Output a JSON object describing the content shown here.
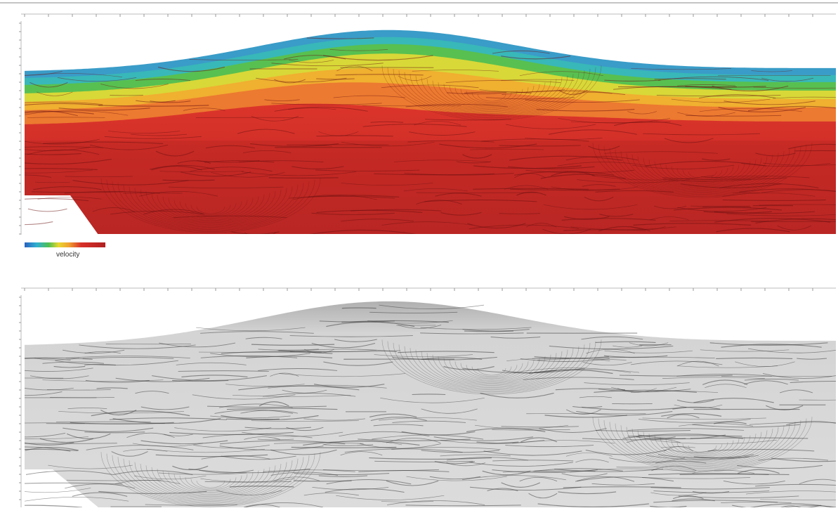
{
  "colorbar": {
    "label": "velocity"
  }
}
